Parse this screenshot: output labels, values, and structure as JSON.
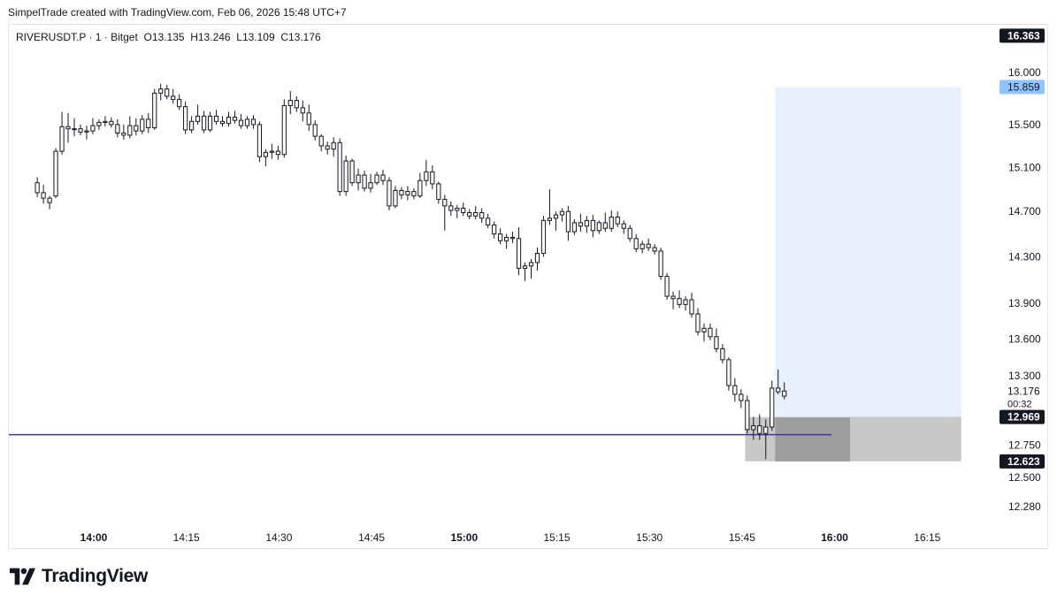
{
  "header": {
    "attribution": "SimpelTrade created with TradingView.com, Feb 06, 2026 15:48 UTC+7"
  },
  "legend": {
    "symbol_line": "RIVERUSDT.P · 1 · Bitget",
    "open": "O13.135",
    "high": "H13.246",
    "low": "L13.109",
    "close": "C13.176"
  },
  "footer": {
    "brand": "TradingView",
    "logo_icon": "tradingview-logo-icon"
  },
  "colors": {
    "candle_border": "#131722",
    "candle_up_fill": "#ffffff",
    "candle_down_fill": "#ffffff",
    "target_zone": "#e8f0fe",
    "stop_zone": "#c8c8c8",
    "stop_zone_dark": "#9e9e9e",
    "level_line": "#4a2ea6",
    "badge_dark": "#131722",
    "badge_blue": "#90c3ff"
  },
  "chart_data": {
    "type": "candlestick",
    "timeframe": "1",
    "exchange": "Bitget",
    "symbol": "RIVERUSDT.P",
    "x_ticks": [
      {
        "label": "14:00",
        "minute": 0,
        "bold": true
      },
      {
        "label": "14:15",
        "minute": 15,
        "bold": false
      },
      {
        "label": "14:30",
        "minute": 30,
        "bold": false
      },
      {
        "label": "14:45",
        "minute": 45,
        "bold": false
      },
      {
        "label": "15:00",
        "minute": 60,
        "bold": true
      },
      {
        "label": "15:15",
        "minute": 75,
        "bold": false
      },
      {
        "label": "15:30",
        "minute": 90,
        "bold": false
      },
      {
        "label": "15:45",
        "minute": 105,
        "bold": false
      },
      {
        "label": "16:00",
        "minute": 120,
        "bold": true
      },
      {
        "label": "16:15",
        "minute": 135,
        "bold": false
      }
    ],
    "y_ticks": [
      "16.000",
      "15.500",
      "15.100",
      "14.700",
      "14.300",
      "13.900",
      "13.600",
      "13.300",
      "12.750",
      "12.500",
      "12.280"
    ],
    "price_badges": [
      {
        "label": "16.363",
        "value": 16.363,
        "style": "dark"
      },
      {
        "label": "15.859",
        "value": 15.859,
        "style": "blue"
      },
      {
        "label": "13.176",
        "value": 13.176,
        "style": "plain",
        "countdown": "00:32"
      },
      {
        "label": "12.969",
        "value": 12.969,
        "style": "dark"
      },
      {
        "label": "12.623",
        "value": 12.623,
        "style": "dark"
      }
    ],
    "long_position": {
      "entry": 12.969,
      "target": 15.859,
      "stop": 12.623,
      "start_minute": 105.5,
      "end_minute": 140.5,
      "filled_end_minute": 122.5
    },
    "horizontal_line": {
      "value": 12.83,
      "start_minute": -14,
      "end_minute": 119.5
    },
    "candles": [
      [
        14.96,
        15.01,
        14.83,
        14.87
      ],
      [
        14.87,
        14.94,
        14.77,
        14.82
      ],
      [
        14.82,
        14.84,
        14.72,
        14.78
      ],
      [
        14.84,
        15.28,
        14.82,
        15.25
      ],
      [
        15.25,
        15.62,
        15.22,
        15.48
      ],
      [
        15.48,
        15.61,
        15.33,
        15.46
      ],
      [
        15.46,
        15.56,
        15.39,
        15.46
      ],
      [
        15.46,
        15.5,
        15.4,
        15.43
      ],
      [
        15.43,
        15.49,
        15.36,
        15.44
      ],
      [
        15.44,
        15.56,
        15.41,
        15.49
      ],
      [
        15.49,
        15.55,
        15.45,
        15.52
      ],
      [
        15.52,
        15.58,
        15.48,
        15.53
      ],
      [
        15.53,
        15.57,
        15.47,
        15.5
      ],
      [
        15.5,
        15.55,
        15.38,
        15.42
      ],
      [
        15.42,
        15.5,
        15.36,
        15.4
      ],
      [
        15.4,
        15.58,
        15.37,
        15.49
      ],
      [
        15.49,
        15.56,
        15.4,
        15.44
      ],
      [
        15.44,
        15.59,
        15.41,
        15.55
      ],
      [
        15.55,
        15.61,
        15.42,
        15.47
      ],
      [
        15.47,
        15.84,
        15.45,
        15.8
      ],
      [
        15.8,
        15.89,
        15.73,
        15.84
      ],
      [
        15.84,
        15.88,
        15.74,
        15.77
      ],
      [
        15.77,
        15.84,
        15.7,
        15.74
      ],
      [
        15.74,
        15.79,
        15.64,
        15.67
      ],
      [
        15.67,
        15.72,
        15.41,
        15.45
      ],
      [
        15.45,
        15.58,
        15.42,
        15.53
      ],
      [
        15.53,
        15.69,
        15.5,
        15.58
      ],
      [
        15.58,
        15.63,
        15.42,
        15.45
      ],
      [
        15.45,
        15.62,
        15.43,
        15.58
      ],
      [
        15.58,
        15.64,
        15.5,
        15.53
      ],
      [
        15.53,
        15.58,
        15.48,
        15.51
      ],
      [
        15.51,
        15.62,
        15.48,
        15.57
      ],
      [
        15.57,
        15.63,
        15.51,
        15.54
      ],
      [
        15.54,
        15.6,
        15.46,
        15.49
      ],
      [
        15.49,
        15.58,
        15.46,
        15.55
      ],
      [
        15.55,
        15.59,
        15.46,
        15.5
      ],
      [
        15.5,
        15.53,
        15.15,
        15.2
      ],
      [
        15.2,
        15.27,
        15.11,
        15.24
      ],
      [
        15.24,
        15.32,
        15.18,
        15.25
      ],
      [
        15.25,
        15.3,
        15.17,
        15.22
      ],
      [
        15.22,
        15.74,
        15.19,
        15.68
      ],
      [
        15.68,
        15.82,
        15.6,
        15.73
      ],
      [
        15.73,
        15.77,
        15.62,
        15.66
      ],
      [
        15.66,
        15.73,
        15.53,
        15.61
      ],
      [
        15.61,
        15.69,
        15.44,
        15.5
      ],
      [
        15.5,
        15.54,
        15.35,
        15.39
      ],
      [
        15.39,
        15.41,
        15.25,
        15.3
      ],
      [
        15.3,
        15.34,
        15.22,
        15.27
      ],
      [
        15.27,
        15.38,
        15.2,
        15.33
      ],
      [
        15.33,
        15.37,
        14.84,
        14.88
      ],
      [
        14.88,
        15.21,
        14.84,
        15.16
      ],
      [
        15.16,
        15.18,
        14.93,
        14.96
      ],
      [
        14.96,
        15.09,
        14.89,
        15.03
      ],
      [
        15.03,
        15.07,
        14.88,
        14.91
      ],
      [
        14.91,
        15.04,
        14.87,
        14.96
      ],
      [
        14.96,
        15.06,
        14.94,
        15.03
      ],
      [
        15.03,
        15.08,
        14.94,
        14.98
      ],
      [
        14.98,
        15.01,
        14.71,
        14.75
      ],
      [
        14.75,
        14.93,
        14.73,
        14.89
      ],
      [
        14.89,
        14.92,
        14.81,
        14.85
      ],
      [
        14.85,
        14.93,
        14.8,
        14.88
      ],
      [
        14.88,
        14.91,
        14.81,
        14.84
      ],
      [
        14.84,
        15.05,
        14.82,
        14.98
      ],
      [
        14.98,
        15.17,
        14.93,
        15.06
      ],
      [
        15.06,
        15.12,
        14.9,
        14.95
      ],
      [
        14.95,
        14.97,
        14.77,
        14.81
      ],
      [
        14.81,
        14.85,
        14.53,
        14.75
      ],
      [
        14.75,
        14.79,
        14.66,
        14.71
      ],
      [
        14.71,
        14.76,
        14.64,
        14.73
      ],
      [
        14.73,
        14.78,
        14.66,
        14.69
      ],
      [
        14.69,
        14.72,
        14.63,
        14.66
      ],
      [
        14.66,
        14.75,
        14.63,
        14.69
      ],
      [
        14.69,
        14.73,
        14.6,
        14.64
      ],
      [
        14.64,
        14.68,
        14.55,
        14.58
      ],
      [
        14.58,
        14.61,
        14.46,
        14.5
      ],
      [
        14.5,
        14.55,
        14.41,
        14.44
      ],
      [
        14.44,
        14.5,
        14.37,
        14.47
      ],
      [
        14.47,
        14.52,
        14.42,
        14.46
      ],
      [
        14.46,
        14.56,
        14.14,
        14.2
      ],
      [
        14.2,
        14.25,
        14.09,
        14.22
      ],
      [
        14.22,
        14.28,
        14.11,
        14.25
      ],
      [
        14.25,
        14.38,
        14.18,
        14.33
      ],
      [
        14.33,
        14.66,
        14.3,
        14.62
      ],
      [
        14.62,
        14.9,
        14.58,
        14.64
      ],
      [
        14.64,
        14.7,
        14.53,
        14.67
      ],
      [
        14.67,
        14.73,
        14.61,
        14.7
      ],
      [
        14.7,
        14.75,
        14.44,
        14.52
      ],
      [
        14.52,
        14.63,
        14.49,
        14.6
      ],
      [
        14.6,
        14.68,
        14.52,
        14.57
      ],
      [
        14.57,
        14.66,
        14.51,
        14.62
      ],
      [
        14.62,
        14.67,
        14.47,
        14.53
      ],
      [
        14.53,
        14.62,
        14.5,
        14.6
      ],
      [
        14.6,
        14.69,
        14.52,
        14.55
      ],
      [
        14.55,
        14.71,
        14.52,
        14.65
      ],
      [
        14.65,
        14.7,
        14.56,
        14.59
      ],
      [
        14.59,
        14.62,
        14.5,
        14.55
      ],
      [
        14.55,
        14.58,
        14.43,
        14.46
      ],
      [
        14.46,
        14.5,
        14.34,
        14.37
      ],
      [
        14.37,
        14.44,
        14.33,
        14.41
      ],
      [
        14.41,
        14.46,
        14.35,
        14.38
      ],
      [
        14.38,
        14.41,
        14.32,
        14.35
      ],
      [
        14.35,
        14.38,
        14.1,
        14.13
      ],
      [
        14.13,
        14.16,
        13.93,
        13.96
      ],
      [
        13.96,
        14.0,
        13.85,
        13.94
      ],
      [
        13.94,
        14.01,
        13.86,
        13.89
      ],
      [
        13.89,
        13.96,
        13.84,
        13.93
      ],
      [
        13.93,
        13.99,
        13.78,
        13.81
      ],
      [
        13.81,
        13.86,
        13.63,
        13.66
      ],
      [
        13.66,
        13.73,
        13.58,
        13.69
      ],
      [
        13.69,
        13.73,
        13.59,
        13.62
      ],
      [
        13.62,
        13.69,
        13.49,
        13.52
      ],
      [
        13.52,
        13.56,
        13.4,
        13.43
      ],
      [
        13.43,
        13.45,
        13.18,
        13.22
      ],
      [
        13.22,
        13.28,
        13.09,
        13.15
      ],
      [
        13.15,
        13.19,
        13.04,
        13.1
      ],
      [
        13.1,
        13.14,
        12.84,
        12.87
      ],
      [
        12.87,
        12.97,
        12.79,
        12.9
      ],
      [
        12.9,
        12.99,
        12.79,
        12.84
      ],
      [
        12.84,
        12.95,
        12.64,
        12.89
      ],
      [
        12.89,
        13.26,
        12.86,
        13.2
      ],
      [
        13.2,
        13.35,
        13.15,
        13.17
      ],
      [
        13.135,
        13.246,
        13.109,
        13.176
      ]
    ]
  }
}
